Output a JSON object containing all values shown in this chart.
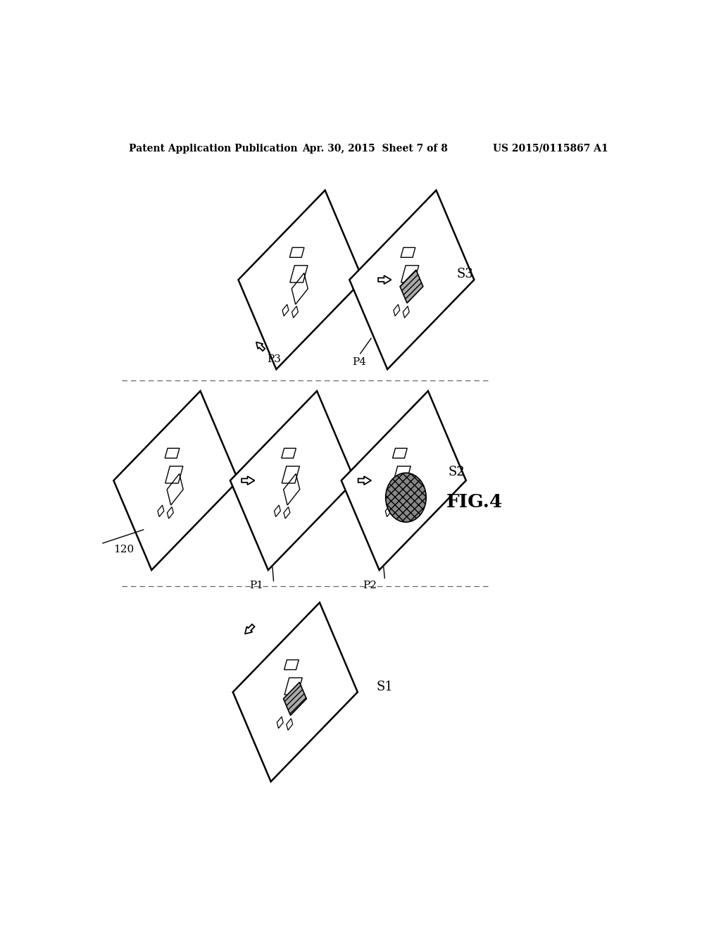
{
  "header_left": "Patent Application Publication",
  "header_center": "Apr. 30, 2015  Sheet 7 of 8",
  "header_right": "US 2015/0115867 A1",
  "bg_color": "#ffffff",
  "text_color": "#000000",
  "title": "FIG.4",
  "label_120": "120",
  "label_P1": "P1",
  "label_P2": "P2",
  "label_P3": "P3",
  "label_P4": "P4",
  "label_S1": "S1",
  "label_S2": "S2",
  "label_S3": "S3"
}
